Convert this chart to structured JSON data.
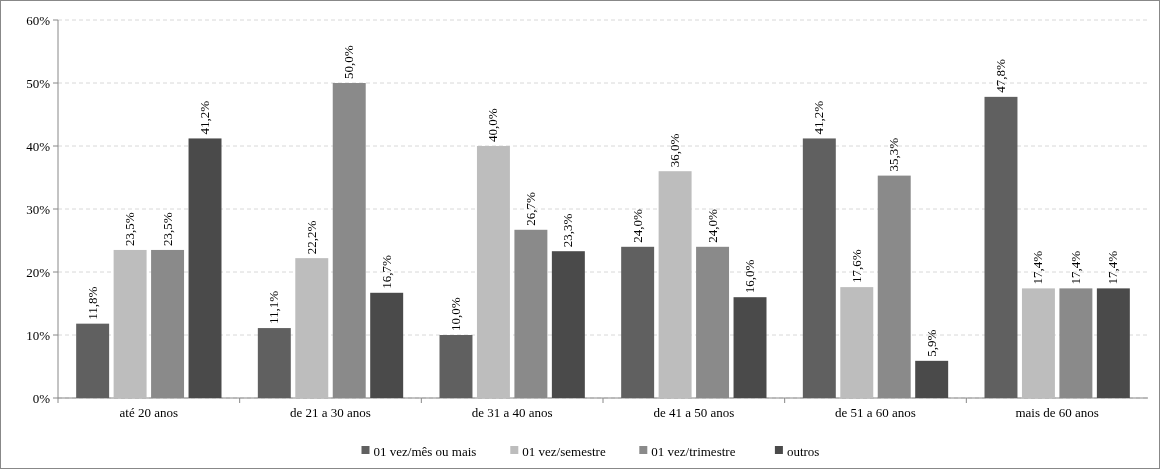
{
  "chart_data": {
    "type": "bar",
    "categories": [
      "até 20 anos",
      "de 21 a 30 anos",
      "de 31 a 40 anos",
      "de 41 a 50 anos",
      "de 51 a 60 anos",
      "mais de 60 anos"
    ],
    "series": [
      {
        "name": "01 vez/mês ou mais",
        "color": "#606060",
        "values": [
          11.8,
          11.1,
          10.0,
          24.0,
          41.2,
          47.8
        ],
        "value_labels": [
          "11,8%",
          "11,1%",
          "10,0%",
          "24,0%",
          "41,2%",
          "47,8%"
        ]
      },
      {
        "name": "01 vez/semestre",
        "color": "#bdbdbd",
        "values": [
          23.5,
          22.2,
          40.0,
          36.0,
          17.6,
          17.4
        ],
        "value_labels": [
          "23,5%",
          "22,2%",
          "40,0%",
          "36,0%",
          "17,6%",
          "17,4%"
        ]
      },
      {
        "name": "01 vez/trimestre",
        "color": "#8a8a8a",
        "values": [
          23.5,
          50.0,
          26.7,
          24.0,
          35.3,
          17.4
        ],
        "value_labels": [
          "23,5%",
          "50,0%",
          "26,7%",
          "24,0%",
          "35,3%",
          "17,4%"
        ]
      },
      {
        "name": "outros",
        "color": "#4a4a4a",
        "values": [
          41.2,
          16.7,
          23.3,
          16.0,
          5.9,
          17.4
        ],
        "value_labels": [
          "41,2%",
          "16,7%",
          "23,3%",
          "16,0%",
          "5,9%",
          "17,4%"
        ]
      }
    ],
    "ylim": [
      0,
      60
    ],
    "yticks": [
      {
        "value": 0,
        "label": "0%"
      },
      {
        "value": 10,
        "label": "10%"
      },
      {
        "value": 20,
        "label": "20%"
      },
      {
        "value": 30,
        "label": "30%"
      },
      {
        "value": 40,
        "label": "40%"
      },
      {
        "value": 50,
        "label": "50%"
      },
      {
        "value": 60,
        "label": "60%"
      }
    ],
    "grid": "y",
    "legend": "bottom"
  }
}
